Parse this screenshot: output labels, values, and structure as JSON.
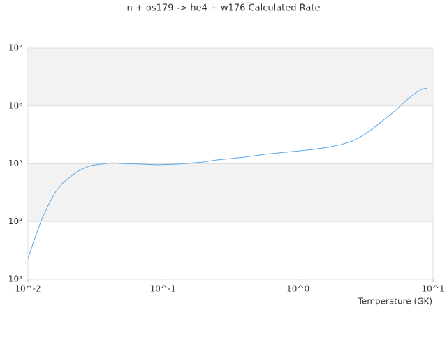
{
  "chart_data": {
    "type": "line",
    "title": "n + os179 -> he4 + w176 Calculated Rate",
    "x_label": "Temperature (GK)",
    "x_log": true,
    "y_log": true,
    "xlim": [
      0.01,
      10
    ],
    "ylim": [
      1000,
      10000000
    ],
    "xticks": [
      {
        "value": 0.01,
        "label": "10^-2"
      },
      {
        "value": 0.1,
        "label": "10^-1"
      },
      {
        "value": 1,
        "label": "10^0"
      },
      {
        "value": 10,
        "label": "10^1"
      }
    ],
    "yticks": [
      {
        "value": 1000,
        "label": "10³"
      },
      {
        "value": 10000,
        "label": "10⁴"
      },
      {
        "value": 100000,
        "label": "10⁵"
      },
      {
        "value": 1000000,
        "label": "10⁶"
      },
      {
        "value": 10000000,
        "label": "10⁷"
      }
    ],
    "bands": true,
    "series": [
      {
        "color": "#5aa6e6",
        "x": [
          0.01,
          0.0113,
          0.0127,
          0.0143,
          0.0161,
          0.0181,
          0.0204,
          0.023,
          0.0259,
          0.0292,
          0.0349,
          0.0417,
          0.05,
          0.071,
          0.09,
          0.129,
          0.196,
          0.248,
          0.4,
          0.57,
          0.82,
          1.17,
          1.68,
          2.1,
          2.54,
          3.05,
          3.6,
          4.3,
          5.2,
          6.2,
          7.4,
          8.4,
          9.1
        ],
        "values": [
          2300,
          5300,
          11200,
          20200,
          33300,
          46500,
          58100,
          72600,
          83400,
          93300,
          98600,
          104000,
          101000,
          98600,
          96000,
          98600,
          107000,
          116000,
          130000,
          146000,
          159000,
          172000,
          193000,
          216000,
          248000,
          310000,
          410000,
          570000,
          815000,
          1200000,
          1680000,
          1980000,
          2040000
        ]
      }
    ]
  }
}
